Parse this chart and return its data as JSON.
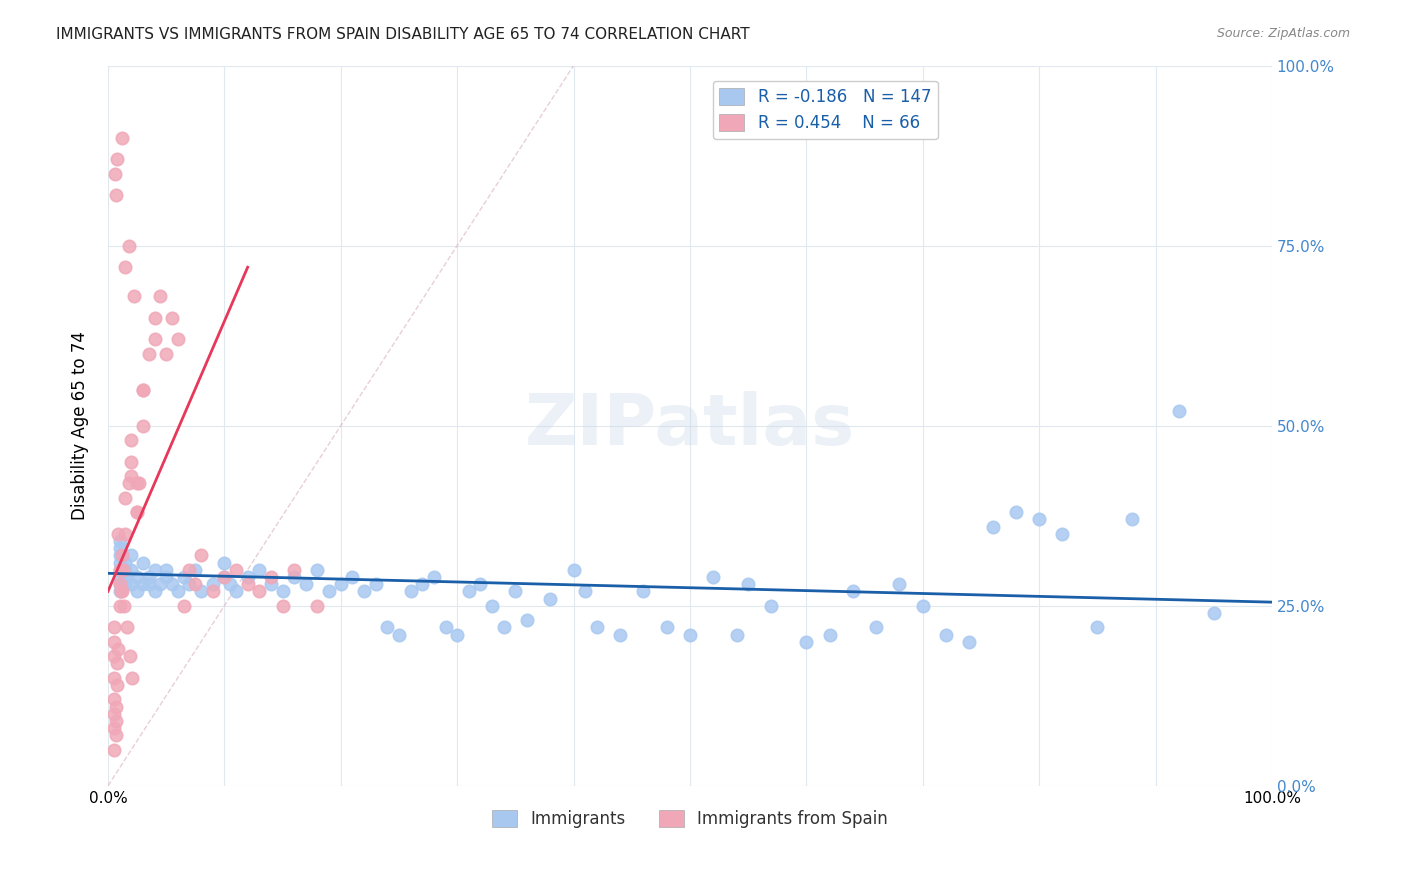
{
  "title": "IMMIGRANTS VS IMMIGRANTS FROM SPAIN DISABILITY AGE 65 TO 74 CORRELATION CHART",
  "source": "Source: ZipAtlas.com",
  "xlabel": "",
  "ylabel": "Disability Age 65 to 74",
  "xlim": [
    0,
    1.0
  ],
  "ylim": [
    0,
    1.0
  ],
  "xtick_labels": [
    "0.0%",
    "100.0%"
  ],
  "ytick_labels": [
    "0.0%",
    "25.0%",
    "50.0%",
    "75.0%",
    "100.0%"
  ],
  "ytick_positions": [
    0.0,
    0.25,
    0.5,
    0.75,
    1.0
  ],
  "legend_entries": [
    {
      "label": "Immigrants",
      "color": "#a8c8f0",
      "R": "-0.186",
      "N": "147"
    },
    {
      "label": "Immigrants from Spain",
      "color": "#f0a8b8",
      "R": "0.454",
      "N": "66"
    }
  ],
  "watermark": "ZIPatlas",
  "blue_scatter_x": [
    0.01,
    0.01,
    0.01,
    0.01,
    0.01,
    0.01,
    0.01,
    0.01,
    0.015,
    0.015,
    0.015,
    0.015,
    0.02,
    0.02,
    0.02,
    0.025,
    0.025,
    0.03,
    0.03,
    0.035,
    0.035,
    0.04,
    0.04,
    0.045,
    0.05,
    0.05,
    0.055,
    0.06,
    0.065,
    0.07,
    0.075,
    0.08,
    0.09,
    0.1,
    0.1,
    0.105,
    0.11,
    0.12,
    0.13,
    0.14,
    0.15,
    0.16,
    0.17,
    0.18,
    0.19,
    0.2,
    0.21,
    0.22,
    0.23,
    0.24,
    0.25,
    0.26,
    0.27,
    0.28,
    0.29,
    0.3,
    0.31,
    0.32,
    0.33,
    0.34,
    0.35,
    0.36,
    0.38,
    0.4,
    0.41,
    0.42,
    0.44,
    0.46,
    0.48,
    0.5,
    0.52,
    0.54,
    0.55,
    0.57,
    0.6,
    0.62,
    0.64,
    0.66,
    0.68,
    0.7,
    0.72,
    0.74,
    0.76,
    0.78,
    0.8,
    0.82,
    0.85,
    0.88,
    0.92,
    0.95
  ],
  "blue_scatter_y": [
    0.3,
    0.32,
    0.28,
    0.31,
    0.29,
    0.27,
    0.33,
    0.34,
    0.3,
    0.28,
    0.31,
    0.29,
    0.3,
    0.28,
    0.32,
    0.29,
    0.27,
    0.28,
    0.31,
    0.29,
    0.28,
    0.3,
    0.27,
    0.28,
    0.29,
    0.3,
    0.28,
    0.27,
    0.29,
    0.28,
    0.3,
    0.27,
    0.28,
    0.29,
    0.31,
    0.28,
    0.27,
    0.29,
    0.3,
    0.28,
    0.27,
    0.29,
    0.28,
    0.3,
    0.27,
    0.28,
    0.29,
    0.27,
    0.28,
    0.22,
    0.21,
    0.27,
    0.28,
    0.29,
    0.22,
    0.21,
    0.27,
    0.28,
    0.25,
    0.22,
    0.27,
    0.23,
    0.26,
    0.3,
    0.27,
    0.22,
    0.21,
    0.27,
    0.22,
    0.21,
    0.29,
    0.21,
    0.28,
    0.25,
    0.2,
    0.21,
    0.27,
    0.22,
    0.28,
    0.25,
    0.21,
    0.2,
    0.36,
    0.38,
    0.37,
    0.35,
    0.22,
    0.37,
    0.52,
    0.24
  ],
  "pink_scatter_x": [
    0.005,
    0.005,
    0.005,
    0.005,
    0.005,
    0.005,
    0.005,
    0.005,
    0.007,
    0.007,
    0.007,
    0.008,
    0.008,
    0.009,
    0.01,
    0.01,
    0.01,
    0.012,
    0.012,
    0.015,
    0.015,
    0.018,
    0.02,
    0.02,
    0.025,
    0.025,
    0.03,
    0.03,
    0.035,
    0.04,
    0.04,
    0.045,
    0.05,
    0.055,
    0.06,
    0.065,
    0.07,
    0.075,
    0.08,
    0.09,
    0.1,
    0.11,
    0.12,
    0.13,
    0.14,
    0.15,
    0.16,
    0.18,
    0.02,
    0.025,
    0.027,
    0.03,
    0.015,
    0.018,
    0.022,
    0.011,
    0.013,
    0.009,
    0.007,
    0.006,
    0.008,
    0.012,
    0.014,
    0.016,
    0.019,
    0.021
  ],
  "pink_scatter_y": [
    0.05,
    0.08,
    0.1,
    0.12,
    0.15,
    0.18,
    0.2,
    0.22,
    0.07,
    0.09,
    0.11,
    0.14,
    0.17,
    0.19,
    0.25,
    0.28,
    0.3,
    0.27,
    0.32,
    0.35,
    0.4,
    0.42,
    0.45,
    0.48,
    0.38,
    0.42,
    0.5,
    0.55,
    0.6,
    0.62,
    0.65,
    0.68,
    0.6,
    0.65,
    0.62,
    0.25,
    0.3,
    0.28,
    0.32,
    0.27,
    0.29,
    0.3,
    0.28,
    0.27,
    0.29,
    0.25,
    0.3,
    0.25,
    0.43,
    0.38,
    0.42,
    0.55,
    0.72,
    0.75,
    0.68,
    0.27,
    0.3,
    0.35,
    0.82,
    0.85,
    0.87,
    0.9,
    0.25,
    0.22,
    0.18,
    0.15
  ],
  "blue_line_x": [
    0.0,
    1.0
  ],
  "blue_line_y": [
    0.295,
    0.255
  ],
  "pink_line_x": [
    0.0,
    0.12
  ],
  "pink_line_y": [
    0.27,
    0.72
  ],
  "blue_trend_color": "#1a5fa8",
  "pink_trend_color": "#e8385a",
  "blue_scatter_color": "#a8c8f0",
  "pink_scatter_color": "#f0a8b8",
  "dashed_line_x": [
    0.0,
    0.4
  ],
  "dashed_line_y": [
    0.0,
    1.0
  ],
  "grid_color": "#e0e8f0",
  "background_color": "#ffffff"
}
